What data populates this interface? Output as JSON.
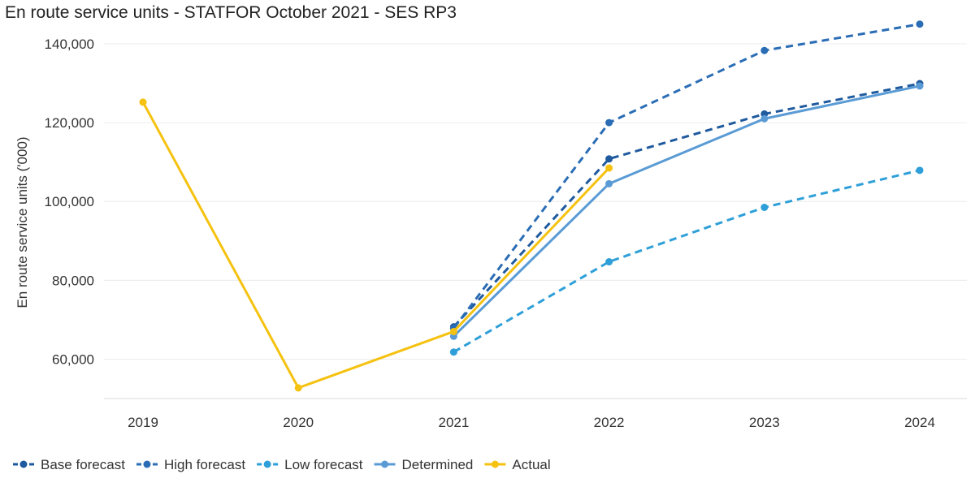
{
  "chart_data": {
    "type": "line",
    "title": "En route service units - STATFOR October 2021 - SES RP3",
    "xlabel": "",
    "ylabel": "En route service units ('000)",
    "x": [
      "2019",
      "2020",
      "2021",
      "2022",
      "2023",
      "2024"
    ],
    "ylim": [
      50000,
      147000
    ],
    "yticks": [
      60000,
      80000,
      100000,
      120000,
      140000
    ],
    "ytick_labels": [
      "60,000",
      "80,000",
      "100,000",
      "120,000",
      "140,000"
    ],
    "grid": true,
    "legend_position": "bottom",
    "series": [
      {
        "name": "Base forecast",
        "color": "#1f5a9e",
        "dashed": true,
        "values": [
          null,
          null,
          68200,
          110800,
          122200,
          129900
        ]
      },
      {
        "name": "High forecast",
        "color": "#2a6db5",
        "dashed": true,
        "values": [
          null,
          null,
          67800,
          120000,
          138300,
          145000
        ]
      },
      {
        "name": "Low forecast",
        "color": "#2e9fd8",
        "dashed": true,
        "values": [
          null,
          null,
          61800,
          84700,
          98500,
          107900
        ]
      },
      {
        "name": "Determined",
        "color": "#5a9bd5",
        "dashed": false,
        "values": [
          null,
          null,
          65800,
          104500,
          121000,
          129300
        ]
      },
      {
        "name": "Actual",
        "color": "#f5c211",
        "dashed": false,
        "values": [
          125200,
          52700,
          67000,
          108500,
          null,
          null
        ]
      }
    ]
  }
}
